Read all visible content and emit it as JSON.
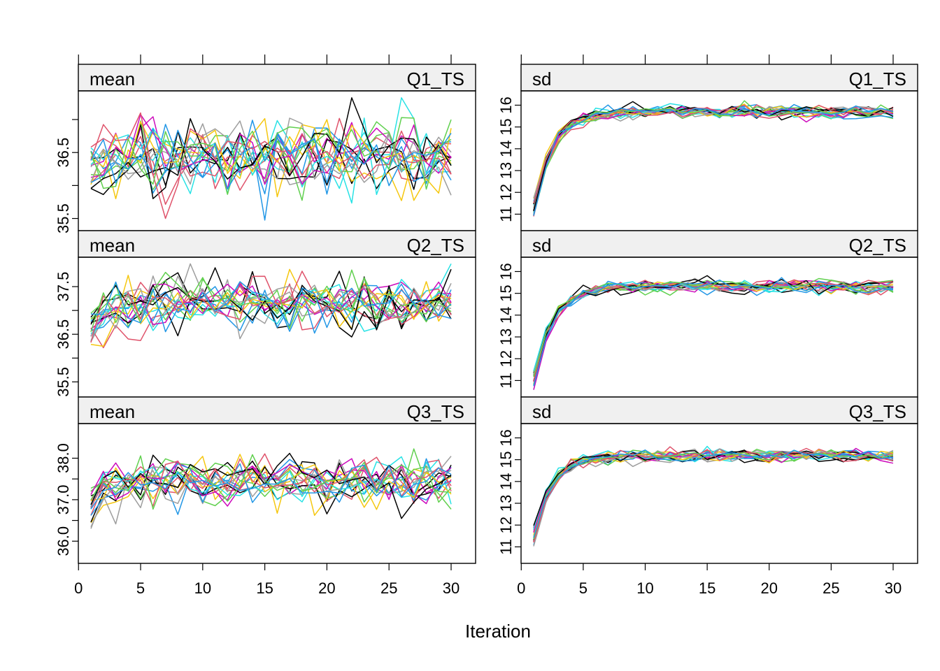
{
  "chart_data": {
    "type": "line",
    "xlabel": "Iteration",
    "x_range": [
      1,
      30
    ],
    "x_ticks": [
      0,
      5,
      10,
      15,
      20,
      25,
      30
    ],
    "series_count": 20,
    "series_colors": [
      "#000000",
      "#DF536B",
      "#61D04F",
      "#2297E6",
      "#28E2E5",
      "#CD0BBC",
      "#F5C710",
      "#9E9E9E",
      "#000000",
      "#DF536B",
      "#61D04F",
      "#2297E6",
      "#28E2E5",
      "#CD0BBC",
      "#F5C710",
      "#9E9E9E",
      "#000000",
      "#DF536B",
      "#61D04F",
      "#2297E6"
    ],
    "strip_color": "#F0F0F0",
    "panels": [
      {
        "id": "mean-q1",
        "stat": "mean",
        "variable": "Q1_TS",
        "ylim": [
          35.4,
          37.35
        ],
        "ytick_labels": [
          "35.5",
          "36.5"
        ],
        "yticks": [
          35.5,
          36.0,
          36.5,
          37.0
        ],
        "trace": {
          "start": 36.3,
          "start_spread": 0.35,
          "plateau": 36.45,
          "noise": 0.28,
          "rise": 0.0,
          "tau": 1
        }
      },
      {
        "id": "mean-q2",
        "stat": "mean",
        "variable": "Q2_TS",
        "ylim": [
          35.3,
          38.0
        ],
        "ytick_labels": [
          "35.5",
          "36.5",
          "37.5"
        ],
        "yticks": [
          35.5,
          36.0,
          36.5,
          37.0,
          37.5
        ],
        "trace": {
          "start": 36.6,
          "start_spread": 0.35,
          "plateau": 37.15,
          "noise": 0.28,
          "rise": 0.55,
          "tau": 2
        }
      },
      {
        "id": "mean-q3",
        "stat": "mean",
        "variable": "Q3_TS",
        "ylim": [
          35.6,
          38.7
        ],
        "ytick_labels": [
          "36.0",
          "37.0",
          "38.0"
        ],
        "yticks": [
          36.0,
          36.5,
          37.0,
          37.5,
          38.0
        ],
        "trace": {
          "start": 36.8,
          "start_spread": 0.5,
          "plateau": 37.45,
          "noise": 0.28,
          "rise": 0.65,
          "tau": 1.5
        }
      },
      {
        "id": "sd-q1",
        "stat": "sd",
        "variable": "Q1_TS",
        "ylim": [
          10.5,
          16.4
        ],
        "ytick_labels": [
          "11",
          "12",
          "13",
          "14",
          "15",
          "16"
        ],
        "yticks": [
          11,
          12,
          13,
          14,
          15,
          16
        ],
        "trace": {
          "start": 11.3,
          "start_spread": 0.45,
          "plateau": 15.7,
          "noise": 0.15,
          "rise": 4.4,
          "tau": 1.5
        }
      },
      {
        "id": "sd-q2",
        "stat": "sd",
        "variable": "Q2_TS",
        "ylim": [
          10.5,
          16.4
        ],
        "ytick_labels": [
          "11",
          "12",
          "13",
          "14",
          "15",
          "16"
        ],
        "yticks": [
          11,
          12,
          13,
          14,
          15,
          16
        ],
        "trace": {
          "start": 11.0,
          "start_spread": 0.45,
          "plateau": 15.3,
          "noise": 0.15,
          "rise": 4.3,
          "tau": 1.5
        }
      },
      {
        "id": "sd-q3",
        "stat": "sd",
        "variable": "Q3_TS",
        "ylim": [
          10.5,
          16.4
        ],
        "ytick_labels": [
          "11",
          "12",
          "13",
          "14",
          "15",
          "16"
        ],
        "yticks": [
          11,
          12,
          13,
          14,
          15,
          16
        ],
        "trace": {
          "start": 11.5,
          "start_spread": 0.5,
          "plateau": 15.2,
          "noise": 0.15,
          "rise": 3.7,
          "tau": 1.5
        }
      }
    ]
  }
}
